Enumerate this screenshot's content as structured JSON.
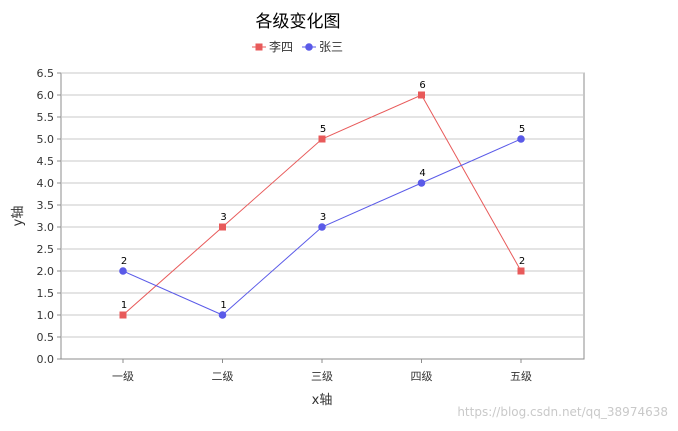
{
  "chart_data": {
    "type": "line",
    "title": "各级变化图",
    "xlabel": "x轴",
    "ylabel": "y轴",
    "categories": [
      "一级",
      "二级",
      "三级",
      "四级",
      "五级"
    ],
    "ylim": [
      0,
      6.5
    ],
    "yticks": [
      "0.0",
      "0.5",
      "1.0",
      "1.5",
      "2.0",
      "2.5",
      "3.0",
      "3.5",
      "4.0",
      "4.5",
      "5.0",
      "5.5",
      "6.0",
      "6.5"
    ],
    "grid": true,
    "legend_position": "top-center",
    "series": [
      {
        "name": "李四",
        "values": [
          1,
          3,
          5,
          6,
          2
        ],
        "color": "#e85a5a",
        "marker": "square"
      },
      {
        "name": "张三",
        "values": [
          2,
          1,
          3,
          4,
          5
        ],
        "color": "#5a5ae8",
        "marker": "circle"
      }
    ]
  },
  "watermark": "https://blog.csdn.net/qq_38974638"
}
